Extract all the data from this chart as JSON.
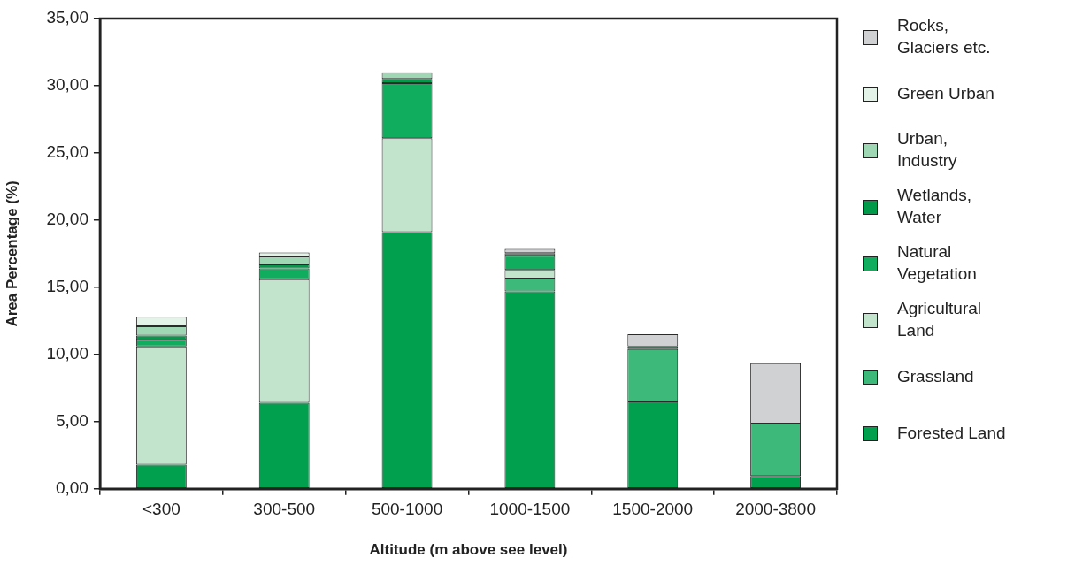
{
  "chart_data": {
    "type": "bar",
    "stacked": true,
    "xlabel": "Altitude (m above see level)",
    "ylabel": "Area Percentage (%)",
    "categories": [
      "<300",
      "300-500",
      "500-1000",
      "1000-1500",
      "1500-2000",
      "2000-3800"
    ],
    "ylim": [
      0,
      35
    ],
    "yticks": [
      {
        "value": 0,
        "label": "0,00"
      },
      {
        "value": 5,
        "label": "5,00"
      },
      {
        "value": 10,
        "label": "10,00"
      },
      {
        "value": 15,
        "label": "15,00"
      },
      {
        "value": 20,
        "label": "20,00"
      },
      {
        "value": 25,
        "label": "25,00"
      },
      {
        "value": 30,
        "label": "30,00"
      },
      {
        "value": 35,
        "label": "35,00"
      }
    ],
    "grid": false,
    "legend": "right",
    "series": [
      {
        "name": "Forested Land",
        "color": "#00a04f",
        "values": [
          1.8,
          6.4,
          19.1,
          14.7,
          6.5,
          0.95
        ]
      },
      {
        "name": "Grassland",
        "color": "#3dba7a",
        "values": [
          0,
          0,
          0,
          0.95,
          3.9,
          3.9
        ]
      },
      {
        "name": "Agricultural Land",
        "color": "#c2e3cc",
        "values": [
          8.8,
          9.2,
          7.0,
          0.65,
          0,
          0
        ]
      },
      {
        "name": "Natural Vegetation",
        "color": "#10ad5e",
        "values": [
          0.5,
          0.8,
          4.1,
          1.05,
          0.2,
          0
        ]
      },
      {
        "name": "Wetlands, Water",
        "color": "#009a4a",
        "values": [
          0.3,
          0.3,
          0.3,
          0.2,
          0,
          0
        ]
      },
      {
        "name": "Urban, Industry",
        "color": "#9fd6b4",
        "values": [
          0.7,
          0.6,
          0.5,
          0,
          0,
          0
        ]
      },
      {
        "name": "Green Urban",
        "color": "#e3f3e8",
        "values": [
          0.7,
          0.3,
          0,
          0,
          0,
          0
        ]
      },
      {
        "name": "Rocks, Glaciers etc.",
        "color": "#d0d1d3",
        "values": [
          0,
          0,
          0,
          0.3,
          0.9,
          4.5
        ]
      }
    ]
  }
}
